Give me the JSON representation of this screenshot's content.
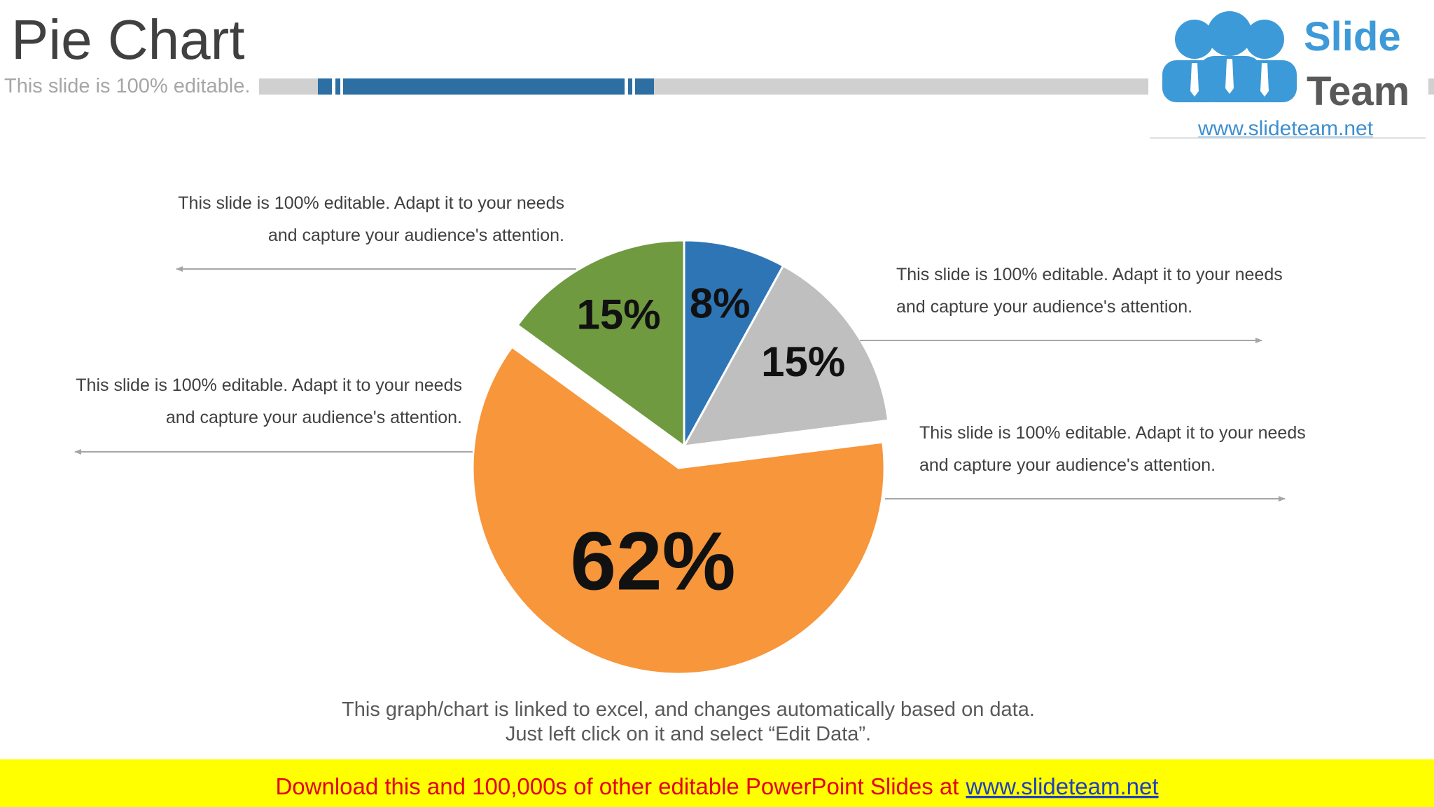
{
  "header": {
    "title": "Pie Chart",
    "subtitle": "This slide is 100% editable."
  },
  "logo": {
    "word1": "Slide",
    "word2": "Team",
    "url": "www.slideteam.net"
  },
  "chart_data": {
    "type": "pie",
    "values": [
      8,
      15,
      62,
      15
    ],
    "value_labels": [
      "8%",
      "15%",
      "62%",
      "15%"
    ],
    "colors": [
      "#2e75b6",
      "#bfbfbf",
      "#f7963a",
      "#6f9a40"
    ],
    "annotations": [
      {
        "lines": [
          "This slide is 100% editable. Adapt it to your needs",
          "and capture your audience's attention."
        ]
      },
      {
        "lines": [
          "This slide is 100% editable. Adapt it to your needs",
          "and capture your audience's attention."
        ]
      },
      {
        "lines": [
          "This slide is 100% editable. Adapt it to your needs",
          "and capture your audience's attention."
        ]
      },
      {
        "lines": [
          "This slide is 100% editable. Adapt it to your needs",
          "and capture your audience's attention."
        ]
      }
    ]
  },
  "note": {
    "lines": [
      "This graph/chart is linked to excel, and changes automatically based on data.",
      "Just left click on it and select “Edit Data”."
    ]
  },
  "banner": {
    "text": "Download this and 100,000s of other editable PowerPoint Slides at",
    "link": "www.slideteam.net"
  }
}
